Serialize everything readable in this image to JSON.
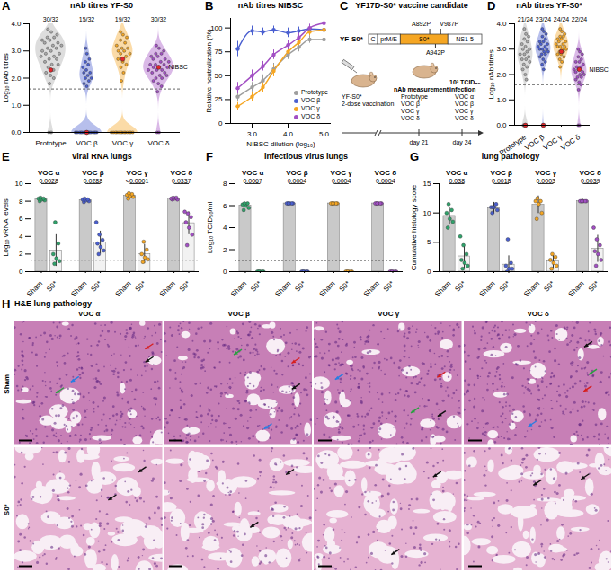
{
  "chart_data": [
    {
      "panel": "A",
      "type": "violin",
      "title": "nAb titres YF-S0",
      "y_label": "Log₁₀ nAb titres",
      "categories": [
        "Prototype",
        "VOC β",
        "VOC γ",
        "VOC δ"
      ],
      "colors": [
        "#a9a9a9",
        "#4a5fd0",
        "#f5a623",
        "#a24fc4"
      ],
      "values": [
        [
          0,
          0,
          1.8,
          2.0,
          2.1,
          2.2,
          2.3,
          2.4,
          2.5,
          2.5,
          2.6,
          2.7,
          2.7,
          2.8,
          2.8,
          2.9,
          2.9,
          3.0,
          3.0,
          3.1,
          3.1,
          3.2,
          3.2,
          3.3,
          3.3,
          3.4,
          3.4,
          3.5,
          3.5,
          3.6,
          3.7,
          3.8
        ],
        [
          0,
          0,
          0,
          0,
          0,
          0,
          0,
          0,
          0,
          0,
          0,
          0,
          0,
          0,
          0,
          0,
          0,
          1.7,
          1.8,
          1.9,
          2.0,
          2.0,
          2.1,
          2.2,
          2.2,
          2.3,
          2.4,
          2.5,
          2.6,
          2.7,
          2.9,
          3.1
        ],
        [
          0,
          0,
          0,
          0,
          0,
          0,
          0,
          0,
          0,
          0,
          0,
          0,
          0,
          1.9,
          2.2,
          2.4,
          2.5,
          2.6,
          2.7,
          2.8,
          2.9,
          2.9,
          3.0,
          3.0,
          3.1,
          3.1,
          3.2,
          3.3,
          3.4,
          3.5,
          3.6,
          3.7
        ],
        [
          0,
          0,
          1.5,
          1.7,
          1.8,
          1.9,
          2.0,
          2.0,
          2.1,
          2.1,
          2.2,
          2.2,
          2.3,
          2.3,
          2.3,
          2.4,
          2.4,
          2.4,
          2.5,
          2.5,
          2.5,
          2.6,
          2.6,
          2.7,
          2.7,
          2.8,
          2.8,
          2.9,
          2.9,
          3.0,
          3.1,
          3.2
        ]
      ],
      "annotations": [
        "30/32",
        "15/32",
        "19/32",
        "30/32"
      ],
      "reference_line": 1.6,
      "reference_points": {
        "name": "NIBSC",
        "color": "#e3262b",
        "values": [
          2.3,
          0,
          2.7,
          2.4
        ]
      },
      "ylim": [
        0,
        4
      ],
      "yticks": [
        0,
        1,
        2,
        3,
        4
      ]
    },
    {
      "panel": "B",
      "type": "line",
      "title": "nAb titres NIBSC",
      "x_label": "NIBSC dilution (log₁₀)",
      "y_label": "Relative neutralization (%)",
      "x": [
        2.6,
        3.0,
        3.3,
        3.6,
        4.0,
        4.3,
        4.6,
        5.0
      ],
      "series": [
        {
          "name": "Prototype",
          "color": "#9e9e9e",
          "values": [
            28,
            38,
            45,
            57,
            72,
            80,
            88,
            88
          ],
          "errors": [
            5,
            5,
            6,
            6,
            5,
            5,
            4,
            6
          ]
        },
        {
          "name": "VOC β",
          "color": "#4a5fd0",
          "values": [
            78,
            97,
            96,
            98,
            95,
            97,
            99,
            98
          ],
          "errors": [
            8,
            5,
            4,
            4,
            5,
            4,
            3,
            4
          ]
        },
        {
          "name": "VOC γ",
          "color": "#f5a623",
          "values": [
            18,
            28,
            38,
            55,
            75,
            85,
            96,
            98
          ],
          "errors": [
            4,
            5,
            6,
            6,
            5,
            5,
            4,
            3
          ]
        },
        {
          "name": "VOC δ",
          "color": "#a24fc4",
          "values": [
            37,
            50,
            60,
            72,
            82,
            90,
            100,
            105
          ],
          "errors": [
            6,
            6,
            5,
            5,
            5,
            5,
            4,
            4
          ]
        }
      ],
      "xlim": [
        2.4,
        5.2
      ],
      "xticks": [
        3,
        4,
        5
      ],
      "ylim": [
        0,
        110
      ],
      "yticks": [
        0,
        25,
        50,
        75,
        100
      ],
      "legend": "bottom-right"
    },
    {
      "panel": "D",
      "type": "violin",
      "title": "nAb titres YF-S0*",
      "y_label": "Log₁₀ nAb titres",
      "categories": [
        "Prototype",
        "VOC β",
        "VOC γ",
        "VOC δ"
      ],
      "colors": [
        "#a9a9a9",
        "#4a5fd0",
        "#f5a623",
        "#a24fc4"
      ],
      "values": [
        [
          0,
          0,
          0,
          1.8,
          2.0,
          2.2,
          2.3,
          2.4,
          2.5,
          2.6,
          2.6,
          2.7,
          2.8,
          2.8,
          2.9,
          3.0,
          3.0,
          3.1,
          3.2,
          3.3,
          3.4,
          3.5,
          3.6,
          3.8
        ],
        [
          0,
          2.2,
          2.4,
          2.5,
          2.6,
          2.7,
          2.8,
          2.8,
          2.9,
          2.9,
          3.0,
          3.0,
          3.0,
          3.1,
          3.1,
          3.2,
          3.2,
          3.3,
          3.3,
          3.4,
          3.5,
          3.6,
          3.7,
          3.8
        ],
        [
          2.3,
          2.5,
          2.6,
          2.7,
          2.8,
          2.8,
          2.9,
          2.9,
          3.0,
          3.0,
          3.1,
          3.1,
          3.1,
          3.2,
          3.2,
          3.3,
          3.3,
          3.4,
          3.4,
          3.5,
          3.5,
          3.6,
          3.7,
          3.8
        ],
        [
          0,
          0,
          1.4,
          1.6,
          1.7,
          1.8,
          1.9,
          1.9,
          2.0,
          2.0,
          2.1,
          2.1,
          2.2,
          2.2,
          2.3,
          2.3,
          2.4,
          2.5,
          2.5,
          2.6,
          2.7,
          2.8,
          2.9,
          3.0
        ]
      ],
      "annotations": [
        "21/24",
        "23/24",
        "24/24",
        "22/24"
      ],
      "reference_line": 1.6,
      "reference_points": {
        "name": "NIBSC",
        "color": "#e3262b",
        "values": [
          0,
          0,
          2.9,
          2.2
        ]
      },
      "ylim": [
        0,
        4
      ],
      "yticks": [
        0,
        1,
        2,
        3,
        4
      ]
    },
    {
      "panel": "E",
      "type": "bar",
      "title": "viral RNA lungs",
      "y_label": "Log₁₀ vRNA levels",
      "groups": [
        "VOC α",
        "VOC β",
        "VOC γ",
        "VOC δ"
      ],
      "p_values": [
        "0.0028",
        "0.0288",
        "<0.0001",
        "0.0337"
      ],
      "colors": [
        "#2fa36b",
        "#4a5fd0",
        "#f5a623",
        "#a24fc4"
      ],
      "series": [
        {
          "name": "Sham",
          "color": "#c9c9c9",
          "values": [
            8.2,
            8.1,
            8.6,
            8.3
          ],
          "errors": [
            0.15,
            0.15,
            0.2,
            0.1
          ],
          "points": [
            [
              8.0,
              8.1,
              8.2,
              8.3,
              8.3,
              8.4
            ],
            [
              7.9,
              8.0,
              8.1,
              8.2,
              8.2,
              8.3
            ],
            [
              8.3,
              8.5,
              8.6,
              8.7,
              8.8,
              8.9
            ],
            [
              8.2,
              8.2,
              8.3,
              8.3,
              8.4,
              8.4
            ]
          ]
        },
        {
          "name": "S0*",
          "color": "#f2f2f2",
          "values": [
            2.4,
            3.3,
            2.0,
            5.5
          ],
          "errors": [
            1.8,
            1.3,
            1.1,
            1.3
          ],
          "points": [
            [
              0.9,
              1.2,
              1.5,
              2.0,
              3.2,
              5.6
            ],
            [
              2.0,
              2.4,
              2.8,
              3.2,
              3.6,
              4.2,
              5.6
            ],
            [
              1.1,
              1.4,
              1.6,
              2.0,
              2.5,
              3.4
            ],
            [
              3.0,
              4.2,
              5.0,
              5.6,
              6.2,
              6.6,
              6.8
            ]
          ]
        }
      ],
      "reference_line": 1.3,
      "ylim": [
        0,
        10
      ],
      "yticks": [
        0,
        2,
        4,
        6,
        8,
        10
      ]
    },
    {
      "panel": "F",
      "type": "bar",
      "title": "infectious virus lungs",
      "y_label": "Log₁₀ TCID₅₀/ml",
      "groups": [
        "VOC α",
        "VOC β",
        "VOC γ",
        "VOC δ"
      ],
      "p_values": [
        "0.0067",
        "0.0004",
        "0.0004",
        "0.0004"
      ],
      "colors": [
        "#2fa36b",
        "#4a5fd0",
        "#f5a623",
        "#a24fc4"
      ],
      "series": [
        {
          "name": "Sham",
          "color": "#c9c9c9",
          "values": [
            6.0,
            6.2,
            6.2,
            6.2
          ],
          "points": [
            [
              5.6,
              5.8,
              6.0,
              6.1,
              6.2,
              6.2
            ],
            [
              6.2,
              6.2,
              6.2,
              6.2,
              6.2,
              6.2
            ],
            [
              6.2,
              6.2,
              6.2,
              6.2,
              6.2,
              6.2
            ],
            [
              6.2,
              6.2,
              6.2,
              6.2,
              6.2,
              6.2
            ]
          ]
        },
        {
          "name": "S0*",
          "color": "#f2f2f2",
          "values": [
            0,
            0,
            0,
            0
          ],
          "points": [
            [
              0,
              0,
              0,
              0,
              0,
              0
            ],
            [
              0,
              0,
              0,
              0,
              0,
              0
            ],
            [
              0,
              0,
              0,
              0,
              0,
              0
            ],
            [
              0,
              0,
              0,
              0,
              0,
              0
            ]
          ]
        }
      ],
      "reference_line": 1.0,
      "ylim": [
        0,
        8
      ],
      "yticks": [
        0,
        2,
        4,
        6,
        8
      ]
    },
    {
      "panel": "G",
      "type": "bar",
      "title": "lung pathology",
      "y_label": "Cumulative histology score",
      "groups": [
        "VOC α",
        "VOC β",
        "VOC γ",
        "VOC δ"
      ],
      "p_values": [
        "0.038",
        "0.0018",
        "0.0003",
        "0.0039"
      ],
      "colors": [
        "#2fa36b",
        "#4a5fd0",
        "#f5a623",
        "#a24fc4"
      ],
      "series": [
        {
          "name": "Sham",
          "color": "#c9c9c9",
          "values": [
            9.5,
            10.8,
            11.4,
            12.0
          ],
          "errors": [
            1.5,
            1.0,
            1.5,
            0.3
          ],
          "points": [
            [
              7.5,
              8.5,
              9,
              10,
              10.5,
              11.5
            ],
            [
              10,
              10.5,
              11,
              11,
              11.5,
              11
            ],
            [
              9,
              10,
              11.5,
              12,
              12,
              12.5
            ],
            [
              12,
              12,
              12,
              12,
              12,
              12
            ]
          ]
        },
        {
          "name": "S0*",
          "color": "#f2f2f2",
          "values": [
            2.6,
            1.2,
            1.8,
            3.9
          ],
          "errors": [
            2.0,
            1.5,
            1.2,
            2.3
          ],
          "points": [
            [
              0.5,
              1,
              1.5,
              2,
              3,
              4.5,
              6
            ],
            [
              0,
              0.5,
              0.5,
              1,
              1.5,
              5.5
            ],
            [
              0.5,
              1,
              1.5,
              2,
              2.5,
              3
            ],
            [
              1,
              2,
              3,
              3.5,
              4.5,
              5.5,
              7.5
            ]
          ]
        }
      ],
      "ylim": [
        0,
        15
      ],
      "yticks": [
        0,
        5,
        10,
        15
      ]
    }
  ],
  "diagram": {
    "panel": "C",
    "title": "YF17D-S0* vaccine candidate",
    "construct": "YF-S0*",
    "segments": [
      {
        "label": "C"
      },
      {
        "label": "prM/E"
      },
      {
        "label": "S0*",
        "color": "#f5a623"
      },
      {
        "label": "NS1-5"
      }
    ],
    "mutations_above": [
      "A892P",
      "V987P"
    ],
    "mutations_below": [
      "A942P"
    ],
    "vaccination": [
      "YF-S0*",
      "2-dose vaccination"
    ],
    "measurement": [
      "nAb measurement",
      "Prototype",
      "VOC β",
      "VOC γ",
      "VOC δ"
    ],
    "infection": [
      "10³ TCID₅₀",
      "infection",
      "VOC α",
      "VOC β",
      "VOC γ",
      "VOC δ"
    ],
    "days": [
      "day 21",
      "day 24"
    ]
  },
  "images": {
    "panel": "H",
    "title": "H&E lung pathology",
    "columns": [
      "VOC α",
      "VOC β",
      "VOC γ",
      "VOC δ"
    ],
    "rows": [
      "Sham",
      "S0*"
    ]
  }
}
